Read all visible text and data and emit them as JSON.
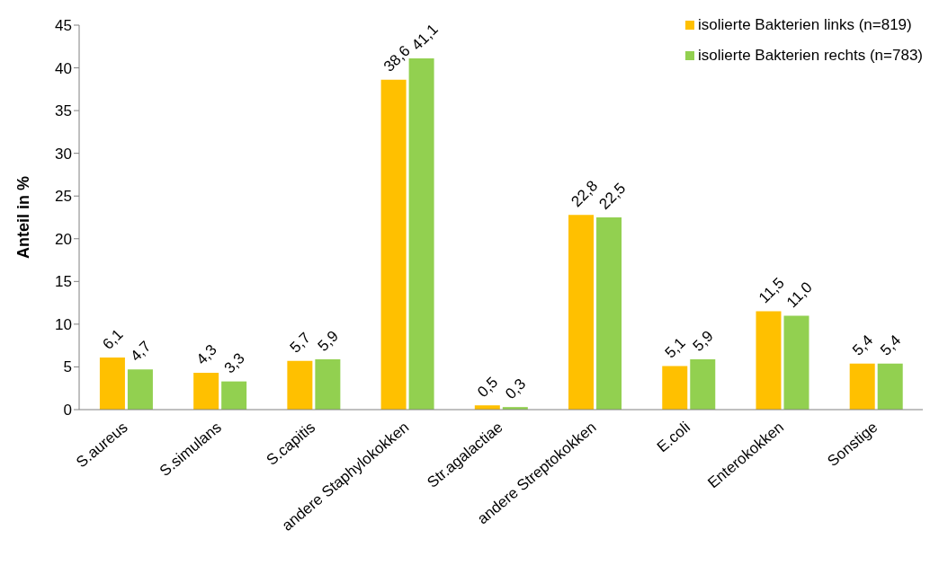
{
  "chart_data": {
    "type": "bar",
    "ylabel": "Anteil in %",
    "categories": [
      "S.aureus",
      "S.simulans",
      "S.capitis",
      "andere Staphylokokken",
      "Str.agalactiae",
      "andere Streptokokken",
      "E.coli",
      "Enterokokken",
      "Sonstige"
    ],
    "series": [
      {
        "name": "isolierte Bakterien links (n=819)",
        "color": "#ffc000",
        "values": [
          6.1,
          4.3,
          5.7,
          38.6,
          0.5,
          22.8,
          5.1,
          11.5,
          5.4
        ],
        "value_labels": [
          "6,1",
          "4,3",
          "5,7",
          "38,6",
          "0,5",
          "22,8",
          "5,1",
          "11,5",
          "5,4"
        ]
      },
      {
        "name": "isolierte Bakterien rechts (n=783)",
        "color": "#92d050",
        "values": [
          4.7,
          3.3,
          5.9,
          41.1,
          0.3,
          22.5,
          5.9,
          11.0,
          5.4
        ],
        "value_labels": [
          "4,7",
          "3,3",
          "5,9",
          "41,1",
          "0,3",
          "22,5",
          "5,9",
          "11,0",
          "5,4"
        ]
      }
    ],
    "ylim": [
      0,
      45
    ],
    "yticks": [
      0,
      5,
      10,
      15,
      20,
      25,
      30,
      35,
      40,
      45
    ],
    "grid": false,
    "legend": "top right"
  }
}
